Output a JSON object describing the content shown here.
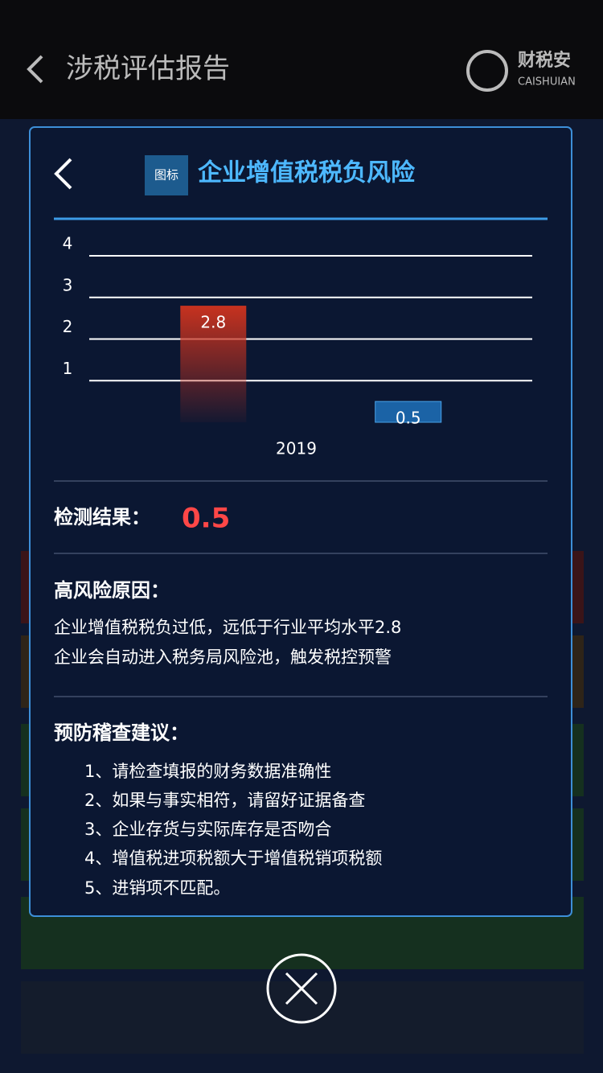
{
  "header": {
    "title": "涉税评估报告",
    "logo": "财税安",
    "logo_sub": "CAISHUIAN"
  },
  "modal": {
    "tag": "图标",
    "title": "企业增值税税负风险",
    "chart_data": {
      "type": "bar",
      "categories": [
        "2019"
      ],
      "series": [
        {
          "color": "#c7321f",
          "values": [
            2.8
          ]
        },
        {
          "color": "#1b63a6",
          "values": [
            0.5
          ]
        }
      ],
      "ylim": [
        0,
        4
      ],
      "yticks": [
        1,
        2,
        3,
        4
      ],
      "grid": true
    },
    "result_label": "检测结果：",
    "result_value": "0.5",
    "reason_title": "高风险原因：",
    "reasons": [
      "企业增值税税负过低，远低于行业平均水平2.8",
      "企业会自动进入税务局风险池，触发税控预警"
    ],
    "advice_title": "预防稽查建议：",
    "advice": [
      "1、请检查填报的财务数据准确性",
      "2、如果与事实相符，请留好证据备查",
      "3、企业存货与实际库存是否吻合",
      "4、增值税进项税额大于增值税销项税额",
      "5、进销项不匹配。"
    ]
  }
}
